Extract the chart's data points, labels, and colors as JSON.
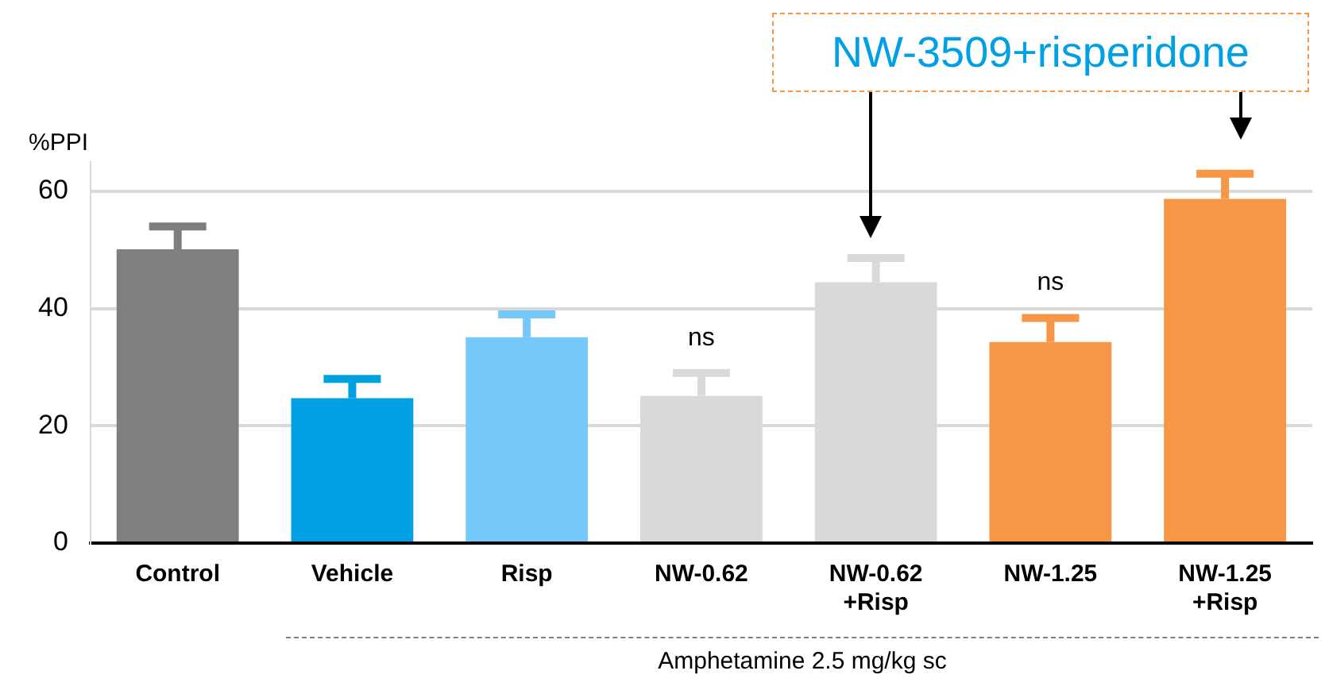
{
  "chart_data": {
    "type": "bar",
    "ylabel": "%PPI",
    "categories": [
      "Control",
      "Vehicle",
      "Risp",
      "NW-0.62",
      "NW-0.62\n+Risp",
      "NW-1.25",
      "NW-1.25\n+Risp"
    ],
    "values": [
      50.1,
      24.7,
      35.1,
      25.1,
      44.5,
      34.3,
      58.7
    ],
    "errors": [
      [
        50.1,
        54
      ],
      [
        24.7,
        28
      ],
      [
        35.1,
        39
      ],
      [
        25.1,
        29
      ],
      [
        44.5,
        48.6
      ],
      [
        34.3,
        38.4
      ],
      [
        58.7,
        63
      ]
    ],
    "colors": [
      "#7f7f7f",
      "#00a0e3",
      "#75c8fa",
      "#d9d9d9",
      "#d9d9d9",
      "#f79646",
      "#f79646"
    ],
    "ylim": [
      0,
      65
    ],
    "yticks": [
      0,
      20,
      40,
      60
    ],
    "grid": "y",
    "legend": false,
    "annotations": [
      {
        "text": "ns",
        "x": "NW-0.62",
        "y": 29
      },
      {
        "text": "ns",
        "x": "NW-1.25",
        "y": 38.4
      },
      "NW-3509+risperidone",
      "Amphetamine 2.5 mg/kg sc"
    ]
  }
}
